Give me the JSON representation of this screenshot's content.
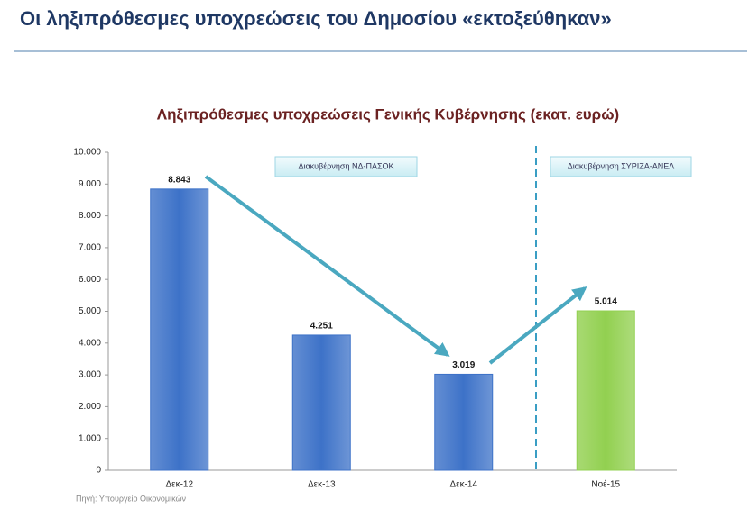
{
  "header": {
    "title": "Οι ληξιπρόθεσμες υποχρεώσεις του Δημοσίου «εκτοξεύθηκαν»"
  },
  "chart_data": {
    "type": "bar",
    "title": "Ληξιπρόθεσμες υποχρεώσεις Γενικής Κυβέρνησης (εκατ. ευρώ)",
    "categories": [
      "Δεκ-12",
      "Δεκ-13",
      "Δεκ-14",
      "Νοέ-15"
    ],
    "values": [
      8843,
      4251,
      3019,
      5014
    ],
    "value_labels": [
      "8.843",
      "4.251",
      "3.019",
      "5.014"
    ],
    "colors": [
      "#3d72c8",
      "#3d72c8",
      "#3d72c8",
      "#92d050"
    ],
    "ylim": [
      0,
      10000
    ],
    "yticks": [
      0,
      {
        "value": 1000,
        "label": "1.000"
      },
      {
        "value": 2000,
        "label": "2.000"
      },
      {
        "value": 3000,
        "label": "3.000"
      },
      {
        "value": 4000,
        "label": "4.000"
      },
      {
        "value": 5000,
        "label": "5.000"
      },
      {
        "value": 6000,
        "label": "6.000"
      },
      {
        "value": 7000,
        "label": "7.000"
      },
      {
        "value": 8000,
        "label": "8.000"
      },
      {
        "value": 9000,
        "label": "9.000"
      },
      {
        "value": 10000,
        "label": "10.000"
      }
    ],
    "annotations": [
      "Διακυβέρνηση ΝΔ-ΠΑΣΟΚ",
      "Διακυβέρνηση ΣΥΡΙΖΑ-ΑΝΕΛ"
    ],
    "source": "Πηγή: Υπουργείο Οικονομικών"
  }
}
